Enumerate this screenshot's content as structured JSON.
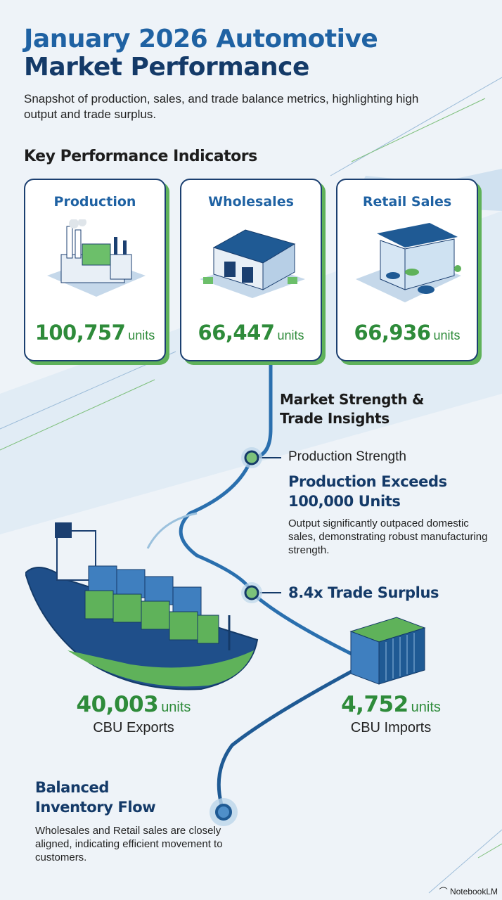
{
  "header": {
    "title_line1": "January 2026 Automotive",
    "title_line2": "Market Performance",
    "subtitle": "Snapshot of production, sales, and trade balance metrics, highlighting high output and trade surplus."
  },
  "kpi": {
    "heading": "Key Performance Indicators",
    "cards": [
      {
        "title": "Production",
        "value": "100,757",
        "unit": "units",
        "icon": "factory-icon"
      },
      {
        "title": "Wholesales",
        "value": "66,447",
        "unit": "units",
        "icon": "warehouse-icon"
      },
      {
        "title": "Retail Sales",
        "value": "66,936",
        "unit": "units",
        "icon": "dealership-icon"
      }
    ]
  },
  "insights": {
    "heading": "Market Strength & Trade Insights",
    "production_label": "Production Strength",
    "production_title": "Production Exceeds 100,000 Units",
    "production_desc": "Output significantly outpaced domestic sales, demonstrating robust manufacturing strength.",
    "trade_title": "8.4x Trade Surplus"
  },
  "trade": {
    "exports_value": "40,003",
    "exports_unit": "units",
    "exports_label": "CBU Exports",
    "imports_value": "4,752",
    "imports_unit": "units",
    "imports_label": "CBU Imports"
  },
  "inventory": {
    "title": "Balanced Inventory Flow",
    "desc": "Wholesales and Retail sales are closely aligned, indicating efficient movement to customers."
  },
  "footer": {
    "brand": "NotebookLM"
  },
  "colors": {
    "title_blue": "#1f62a3",
    "navy": "#143a68",
    "green": "#2e8b3a",
    "accent_green": "#5fb25a"
  }
}
